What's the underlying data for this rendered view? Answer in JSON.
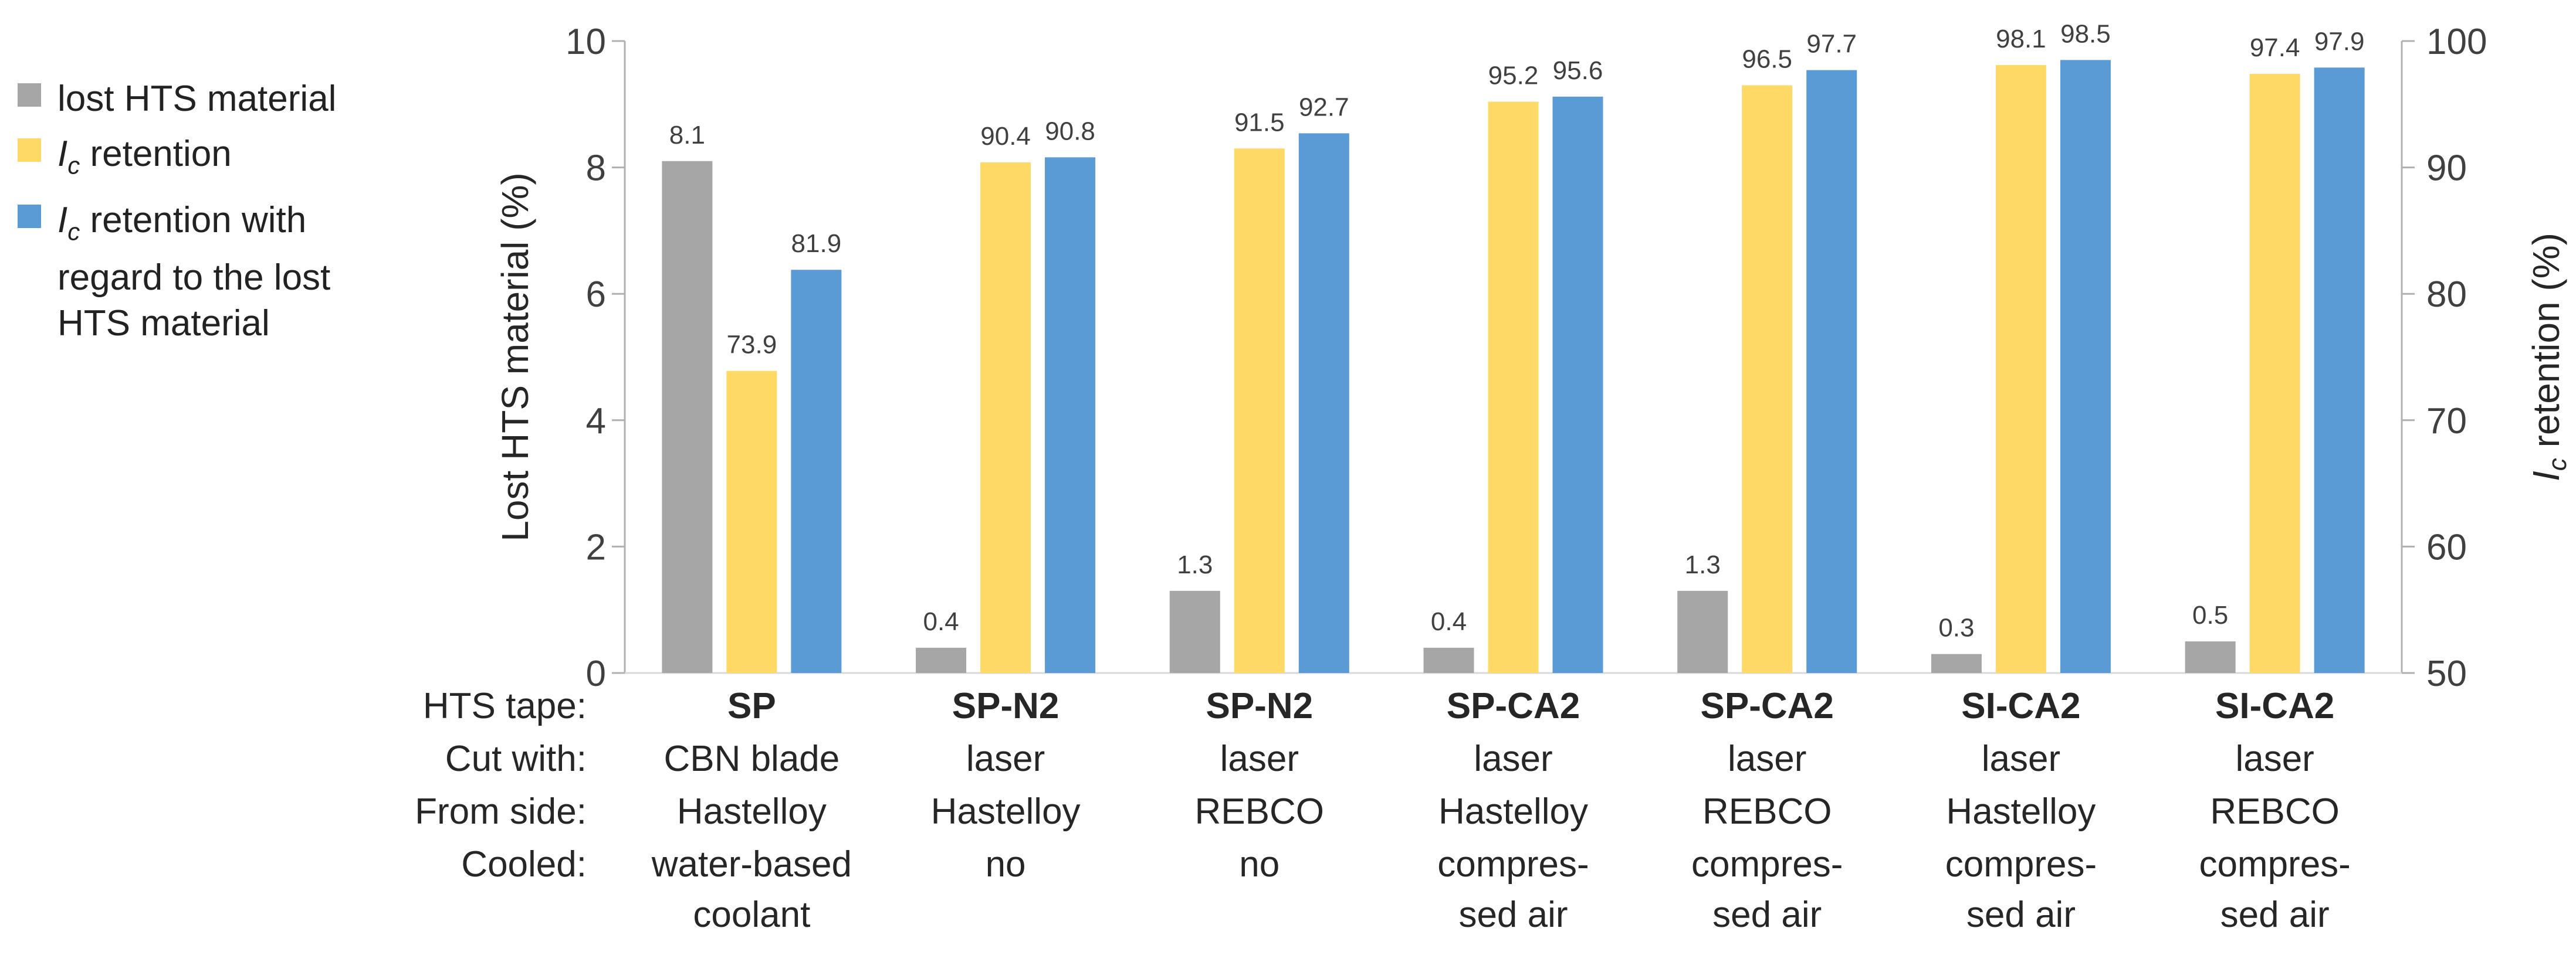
{
  "chart_data": {
    "type": "bar",
    "left_axis": {
      "label": "Lost HTS material (%)",
      "ylim": [
        0,
        10
      ],
      "ticks": [
        0,
        2,
        4,
        6,
        8,
        10
      ]
    },
    "right_axis": {
      "label_prefix": "I",
      "label_sub": "c",
      "label_suffix": " retention (%)",
      "ylim": [
        50,
        100
      ],
      "ticks": [
        50,
        60,
        70,
        80,
        90,
        100
      ]
    },
    "series": [
      {
        "name": "lost HTS material",
        "axis": "left",
        "color": "#a6a6a6",
        "values": [
          8.1,
          0.4,
          1.3,
          0.4,
          1.3,
          0.3,
          0.5
        ]
      },
      {
        "name_prefix": "I",
        "name_sub": "c",
        "name_suffix": " retention",
        "axis": "right",
        "color": "#ffd966",
        "values": [
          73.9,
          90.4,
          91.5,
          95.2,
          96.5,
          98.1,
          97.4
        ]
      },
      {
        "name_prefix": "I",
        "name_sub": "c",
        "name_suffix": " retention with regard to the lost HTS material",
        "axis": "right",
        "color": "#5b9bd5",
        "values": [
          81.9,
          90.8,
          92.7,
          95.6,
          97.7,
          98.5,
          97.9
        ]
      }
    ],
    "value_labels": [
      [
        "8.1",
        "0.4",
        "1.3",
        "0.4",
        "1.3",
        "0.3",
        "0.5"
      ],
      [
        "73.9",
        "90.4",
        "91.5",
        "95.2",
        "96.5",
        "98.1",
        "97.4"
      ],
      [
        "81.9",
        "90.8",
        "92.7",
        "95.6",
        "97.7",
        "98.5",
        "97.9"
      ]
    ],
    "row_headers": [
      "HTS tape:",
      "Cut with:",
      "From side:",
      "Cooled:"
    ],
    "categories": [
      {
        "tape": "SP",
        "cut": "CBN blade",
        "side": "Hastelloy",
        "cooled": [
          "water-based",
          "coolant"
        ]
      },
      {
        "tape": "SP-N2",
        "cut": "laser",
        "side": "Hastelloy",
        "cooled": [
          "no"
        ]
      },
      {
        "tape": "SP-N2",
        "cut": "laser",
        "side": "REBCO",
        "cooled": [
          "no"
        ]
      },
      {
        "tape": "SP-CA2",
        "cut": "laser",
        "side": "Hastelloy",
        "cooled": [
          "compres-",
          "sed air"
        ]
      },
      {
        "tape": "SP-CA2",
        "cut": "laser",
        "side": "REBCO",
        "cooled": [
          "compres-",
          "sed air"
        ]
      },
      {
        "tape": "SI-CA2",
        "cut": "laser",
        "side": "Hastelloy",
        "cooled": [
          "compres-",
          "sed air"
        ]
      },
      {
        "tape": "SI-CA2",
        "cut": "laser",
        "side": "REBCO",
        "cooled": [
          "compres-",
          "sed air"
        ]
      }
    ],
    "legend_lines": [
      "lost HTS material",
      "retention",
      "retention with",
      "regard to the lost",
      "HTS material"
    ]
  }
}
